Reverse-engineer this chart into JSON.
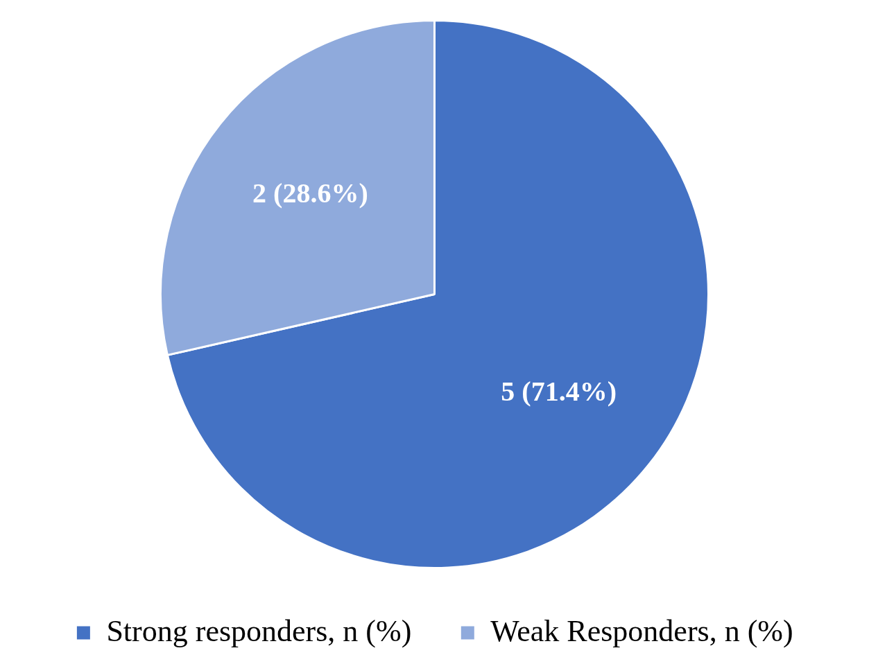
{
  "chart_data": {
    "type": "pie",
    "categories": [
      "Strong responders, n (%)",
      "Weak Responders, n (%)"
    ],
    "values": [
      5,
      2
    ],
    "colors": [
      "#4472c4",
      "#8faadc"
    ],
    "value_labels": [
      "5 (71.4%)",
      "2 (28.6%)"
    ],
    "legend": "bottom"
  }
}
